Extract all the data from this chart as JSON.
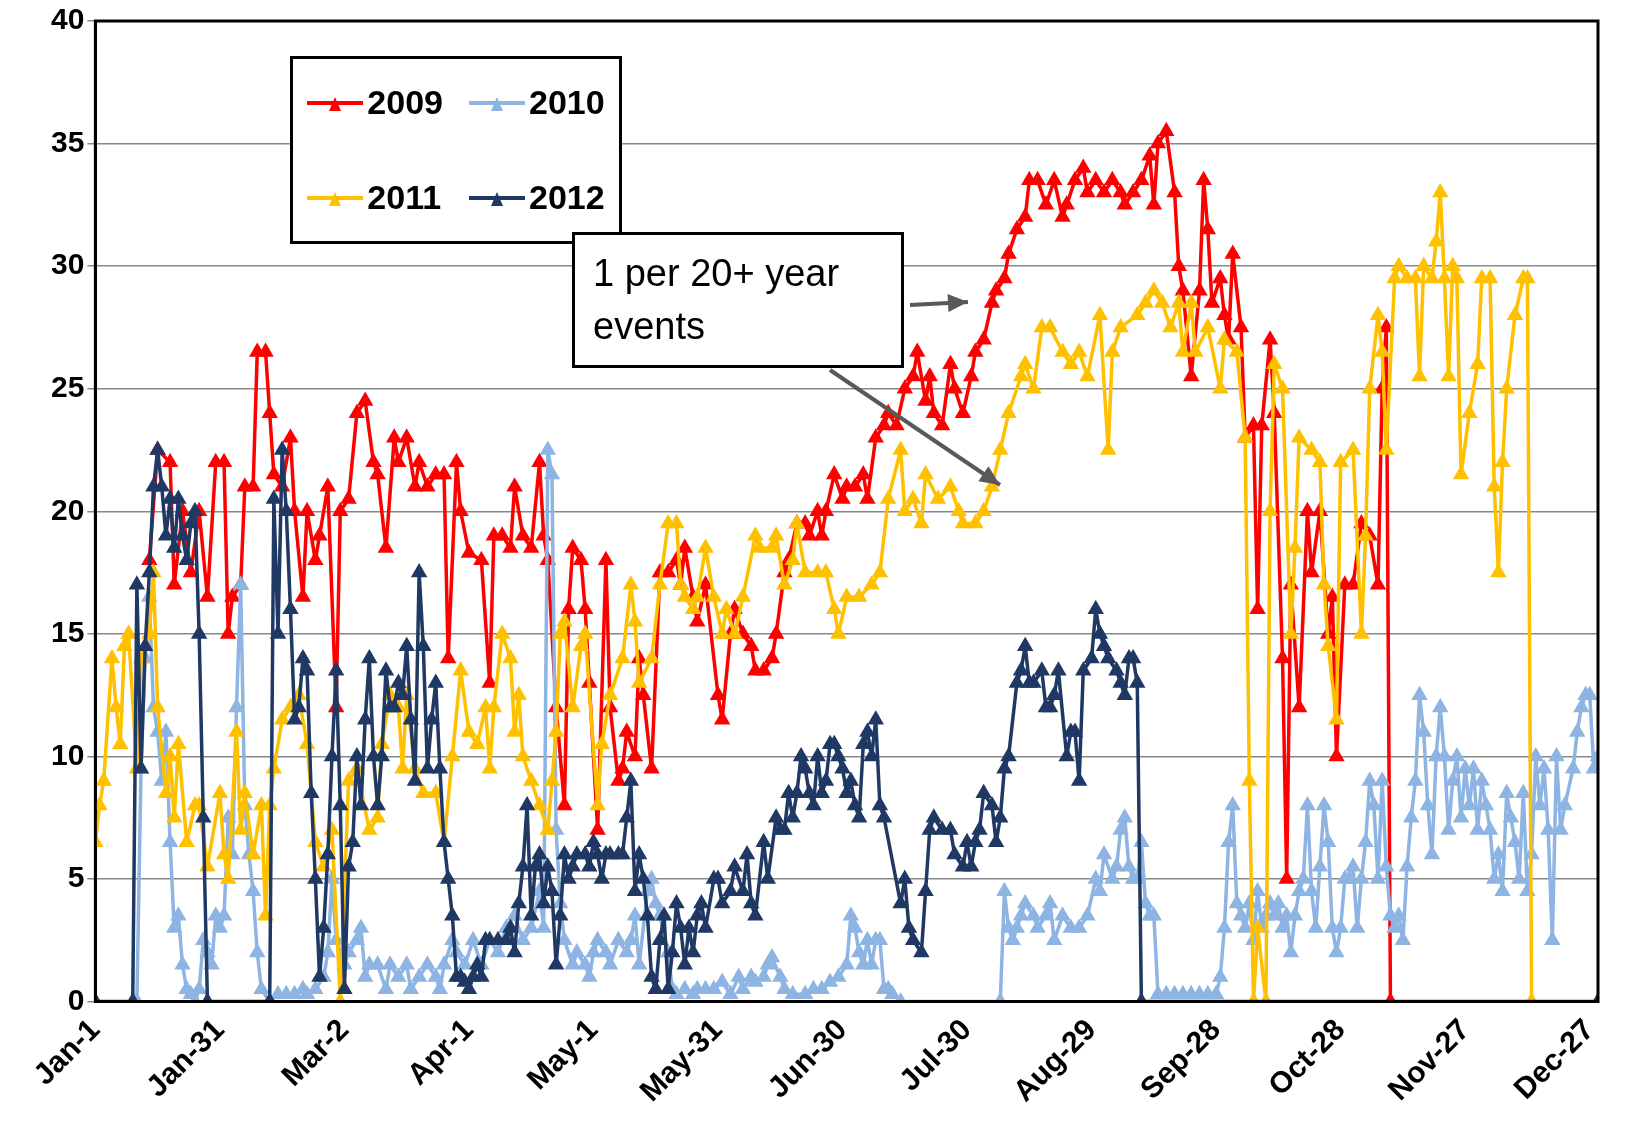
{
  "chart_data": {
    "type": "line",
    "marker": "triangle",
    "line_style": "solid",
    "grid": "y",
    "legend": "top left",
    "xlim": [
      "--01-01",
      "--12-29"
    ],
    "xticks": [
      {
        "value": "--01-01",
        "label": "Jan-1"
      },
      {
        "value": "--01-31",
        "label": "Jan-31"
      },
      {
        "value": "--03-02",
        "label": "Mar-2"
      },
      {
        "value": "--04-01",
        "label": "Apr-1"
      },
      {
        "value": "--05-01",
        "label": "May-1"
      },
      {
        "value": "--05-31",
        "label": "May-31"
      },
      {
        "value": "--06-30",
        "label": "Jun-30"
      },
      {
        "value": "--07-30",
        "label": "Jul-30"
      },
      {
        "value": "--08-29",
        "label": "Aug-29"
      },
      {
        "value": "--09-28",
        "label": "Sep-28"
      },
      {
        "value": "--10-28",
        "label": "Oct-28"
      },
      {
        "value": "--11-27",
        "label": "Nov-27"
      },
      {
        "value": "--12-27",
        "label": "Dec-27"
      }
    ],
    "ylim": [
      0,
      40
    ],
    "yticks": [
      0,
      5,
      10,
      15,
      20,
      25,
      30,
      35,
      40
    ],
    "annotations": [
      "1 per 20+ year events"
    ],
    "series": [
      {
        "name": "2009",
        "color": "#ff0000",
        "x": [
          "--01-14",
          "--01-16",
          "--01-19",
          "--01-20",
          "--01-22",
          "--01-24",
          "--01-26",
          "--01-28",
          "--01-30",
          "--02-01",
          "--02-02",
          "--02-03",
          "--02-05",
          "--02-06",
          "--02-08",
          "--02-09",
          "--02-11",
          "--02-12",
          "--02-13",
          "--02-15",
          "--02-17",
          "--02-18",
          "--02-20",
          "--02-21",
          "--02-23",
          "--02-24",
          "--02-26",
          "--02-28",
          "--03-01",
          "--03-03",
          "--03-05",
          "--03-07",
          "--03-09",
          "--03-10",
          "--03-12",
          "--03-14",
          "--03-15",
          "--03-17",
          "--03-19",
          "--03-20",
          "--03-22",
          "--03-24",
          "--03-26",
          "--03-27",
          "--03-29",
          "--03-30",
          "--04-01",
          "--04-04",
          "--04-06",
          "--04-07",
          "--04-09",
          "--04-11",
          "--04-12",
          "--04-14",
          "--04-16",
          "--04-18",
          "--04-19",
          "--04-20",
          "--04-22",
          "--04-24",
          "--04-25",
          "--04-26",
          "--04-28",
          "--04-29",
          "--04-30",
          "--05-02",
          "--05-04",
          "--05-05",
          "--05-07",
          "--05-08",
          "--05-09",
          "--05-11",
          "--05-12",
          "--05-13",
          "--05-15",
          "--05-17",
          "--05-19",
          "--05-21",
          "--05-22",
          "--05-23",
          "--05-25",
          "--05-26",
          "--05-28",
          "--05-31",
          "--06-01",
          "--06-03",
          "--06-04",
          "--06-06",
          "--06-08",
          "--06-09",
          "--06-11",
          "--06-13",
          "--06-14",
          "--06-16",
          "--06-17",
          "--06-19",
          "--06-21",
          "--06-22",
          "--06-24",
          "--06-25",
          "--06-26",
          "--06-28",
          "--06-30",
          "--07-01",
          "--07-03",
          "--07-05",
          "--07-06",
          "--07-08",
          "--07-10",
          "--07-11",
          "--07-13",
          "--07-15",
          "--07-17",
          "--07-18",
          "--07-20",
          "--07-21",
          "--07-22",
          "--07-24",
          "--07-26",
          "--07-27",
          "--07-29",
          "--07-31",
          "--08-01",
          "--08-03",
          "--08-05",
          "--08-06",
          "--08-08",
          "--08-09",
          "--08-11",
          "--08-13",
          "--08-14",
          "--08-16",
          "--08-18",
          "--08-20",
          "--08-22",
          "--08-23",
          "--08-25",
          "--08-27",
          "--08-28",
          "--08-30",
          "--09-01",
          "--09-03",
          "--09-05",
          "--09-06",
          "--09-08",
          "--09-10",
          "--09-12",
          "--09-13",
          "--09-14",
          "--09-16",
          "--09-18",
          "--09-19",
          "--09-20",
          "--09-22",
          "--09-24",
          "--09-25",
          "--09-26",
          "--09-27",
          "--09-29",
          "--09-30",
          "--10-01",
          "--10-02",
          "--10-04",
          "--10-05",
          "--10-07",
          "--10-08",
          "--10-09",
          "--10-11",
          "--10-12",
          "--10-14",
          "--10-15",
          "--10-16",
          "--10-18",
          "--10-20",
          "--10-21",
          "--10-23",
          "--10-25",
          "--10-26",
          "--10-27",
          "--10-29",
          "--10-31",
          "--11-02",
          "--11-04",
          "--11-06",
          "--11-07",
          "--11-08",
          "--11-09"
        ],
        "values": [
          18,
          22.5,
          22,
          17,
          20,
          17.5,
          20,
          16.5,
          22,
          22,
          15,
          16.5,
          17,
          21,
          21,
          26.5,
          26.5,
          24,
          21.5,
          21,
          23,
          20,
          16.5,
          20,
          18,
          19,
          21,
          12,
          20,
          20.5,
          24,
          24.5,
          22,
          21.5,
          18.5,
          23,
          22,
          23,
          21,
          22,
          21,
          21.5,
          21.5,
          14,
          22,
          20,
          18.3,
          18,
          13,
          19,
          19,
          18.5,
          21,
          19,
          18.5,
          22,
          19,
          18,
          12,
          8,
          16,
          18.5,
          18,
          16,
          13,
          7,
          18,
          12,
          9,
          9.5,
          11,
          10,
          14,
          12.5,
          9.5,
          17.5,
          17.5,
          18,
          17,
          18.5,
          16.5,
          15.5,
          17,
          12.5,
          11.5,
          15,
          16,
          15,
          14.5,
          13.5,
          13.5,
          14,
          15,
          17.5,
          18,
          19.5,
          19.5,
          19,
          20,
          19,
          20,
          21.5,
          20.5,
          21,
          21,
          21.5,
          20.5,
          23,
          23.5,
          24,
          23.5,
          25,
          25.5,
          26.5,
          24.5,
          25.5,
          24,
          23.5,
          26,
          25,
          24,
          25.5,
          26.5,
          27,
          28.5,
          29,
          29.5,
          30.5,
          31.5,
          32,
          33.5,
          33.5,
          32.5,
          33.5,
          32,
          32.5,
          33.5,
          34,
          33,
          33.5,
          33,
          33.5,
          33,
          32.5,
          33,
          33.5,
          34.5,
          32.5,
          35,
          35.5,
          33,
          30,
          29,
          25.5,
          29,
          33.5,
          31.5,
          28.5,
          29.5,
          28,
          27,
          30.5,
          27.5,
          23,
          23.5,
          16,
          23.5,
          27,
          24,
          14,
          5,
          17,
          12,
          20,
          17.5,
          20,
          15,
          16.5,
          10,
          17,
          17,
          19.5,
          19,
          17,
          25,
          27.5,
          0
        ]
      },
      {
        "name": "2010",
        "color": "#8db4e2",
        "x": [
          "--01-11",
          "--01-12",
          "--01-13",
          "--01-14",
          "--01-15",
          "--01-16",
          "--01-17",
          "--01-18",
          "--01-19",
          "--01-20",
          "--01-21",
          "--01-22",
          "--01-23",
          "--01-24",
          "--01-25",
          "--01-26",
          "--01-27",
          "--01-28",
          "--01-29",
          "--01-30",
          "--01-31",
          "--02-01",
          "--02-02",
          "--02-03",
          "--02-04",
          "--02-05",
          "--02-06",
          "--02-07",
          "--02-08",
          "--02-09",
          "--02-10",
          "--02-12",
          "--02-14",
          "--02-16",
          "--02-18",
          "--02-20",
          "--02-21",
          "--02-23",
          "--02-25",
          "--02-26",
          "--02-27",
          "--02-28",
          "--03-02",
          "--03-03",
          "--03-05",
          "--03-06",
          "--03-07",
          "--03-08",
          "--03-10",
          "--03-12",
          "--03-13",
          "--03-15",
          "--03-17",
          "--03-18",
          "--03-20",
          "--03-22",
          "--03-24",
          "--03-25",
          "--03-26",
          "--03-28",
          "--03-29",
          "--03-31",
          "--04-02",
          "--04-04",
          "--04-06",
          "--04-08",
          "--04-10",
          "--04-12",
          "--04-14",
          "--04-16",
          "--04-18",
          "--04-19",
          "--04-20",
          "--04-21",
          "--04-22",
          "--04-23",
          "--04-24",
          "--04-26",
          "--04-27",
          "--04-29",
          "--04-30",
          "--05-01",
          "--05-02",
          "--05-04",
          "--05-05",
          "--05-07",
          "--05-09",
          "--05-10",
          "--05-11",
          "--05-12",
          "--05-14",
          "--05-15",
          "--05-16",
          "--05-17",
          "--05-19",
          "--05-20",
          "--05-21",
          "--05-23",
          "--05-25",
          "--05-26",
          "--05-28",
          "--05-30",
          "--06-01",
          "--06-03",
          "--06-05",
          "--06-06",
          "--06-08",
          "--06-09",
          "--06-11",
          "--06-12",
          "--06-13",
          "--06-15",
          "--06-16",
          "--06-18",
          "--06-21",
          "--06-23",
          "--06-25",
          "--06-27",
          "--06-29",
          "--07-01",
          "--07-02",
          "--07-03",
          "--07-04",
          "--07-05",
          "--07-06",
          "--07-07",
          "--07-08",
          "--07-09",
          "--07-10",
          "--07-11",
          "--07-12",
          "--07-14",
          "--08-07",
          "--08-08",
          "--08-09",
          "--08-10",
          "--08-11",
          "--08-12",
          "--08-13",
          "--08-15",
          "--08-16",
          "--08-18",
          "--08-19",
          "--08-20",
          "--08-22",
          "--08-24",
          "--08-26",
          "--08-28",
          "--08-30",
          "--08-31",
          "--09-01",
          "--09-03",
          "--09-04",
          "--09-05",
          "--09-06",
          "--09-07",
          "--09-08",
          "--09-09",
          "--09-10",
          "--09-11",
          "--09-12",
          "--09-13",
          "--09-14",
          "--09-16",
          "--09-18",
          "--09-20",
          "--09-22",
          "--09-24",
          "--09-26",
          "--09-28",
          "--09-29",
          "--09-30",
          "--10-01",
          "--10-02",
          "--10-03",
          "--10-04",
          "--10-05",
          "--10-06",
          "--10-07",
          "--10-08",
          "--10-09",
          "--10-10",
          "--10-11",
          "--10-12",
          "--10-13",
          "--10-14",
          "--10-15",
          "--10-16",
          "--10-17",
          "--10-18",
          "--10-19",
          "--10-20",
          "--10-21",
          "--10-22",
          "--10-23",
          "--10-24",
          "--10-25",
          "--10-26",
          "--10-27",
          "--10-28",
          "--10-29",
          "--10-30",
          "--10-31",
          "--11-01",
          "--11-02",
          "--11-03",
          "--11-04",
          "--11-05",
          "--11-06",
          "--11-07",
          "--11-08",
          "--11-09",
          "--11-10",
          "--11-11",
          "--11-12",
          "--11-13",
          "--11-14",
          "--11-15",
          "--11-16",
          "--11-17",
          "--11-18",
          "--11-19",
          "--11-20",
          "--11-21",
          "--11-22",
          "--11-23",
          "--11-24",
          "--11-25",
          "--11-26",
          "--11-27",
          "--11-28",
          "--11-29",
          "--11-30",
          "--12-01",
          "--12-02",
          "--12-03",
          "--12-04",
          "--12-05",
          "--12-06",
          "--12-07",
          "--12-08",
          "--12-09",
          "--12-10",
          "--12-11",
          "--12-12",
          "--12-13",
          "--12-14",
          "--12-15",
          "--12-16",
          "--12-17",
          "--12-18",
          "--12-19",
          "--12-20",
          "--12-21",
          "--12-23",
          "--12-24",
          "--12-25",
          "--12-26",
          "--12-27",
          "--12-28",
          "--12-29"
        ],
        "values": [
          0,
          9.5,
          14,
          16.5,
          12,
          11,
          9,
          11,
          6.5,
          3,
          3.5,
          1.5,
          0.5,
          0.3,
          0,
          0.5,
          2.5,
          2,
          1.5,
          3.5,
          3,
          3.5,
          7.5,
          6,
          12,
          17,
          8,
          6,
          4.5,
          2,
          0.5,
          0,
          0.3,
          0.3,
          0.3,
          0.5,
          0.3,
          0.5,
          1,
          2,
          5,
          2.5,
          1.5,
          2,
          2.5,
          3,
          1,
          1.5,
          1.5,
          0.5,
          1.5,
          1,
          1.5,
          0.5,
          1,
          1.5,
          1,
          0.5,
          1.5,
          2.5,
          2,
          1.5,
          2.5,
          1.5,
          2.5,
          2,
          3,
          3.5,
          2.5,
          3,
          4.5,
          3,
          22.5,
          21.5,
          7,
          4,
          2.5,
          1.5,
          2,
          1.5,
          1,
          2,
          2.5,
          2,
          1.5,
          2.5,
          2,
          2.5,
          3.5,
          1.5,
          4.5,
          5,
          4,
          3.5,
          2,
          0.5,
          0.3,
          0.5,
          0.3,
          0.5,
          0.5,
          0.5,
          0.8,
          0.3,
          1,
          0.5,
          1,
          0.8,
          1,
          1.5,
          1.8,
          1,
          0.5,
          0.3,
          0.3,
          0.5,
          0.5,
          0.8,
          1,
          1.5,
          3.5,
          3,
          2,
          1.5,
          2.5,
          1.5,
          2.5,
          2.5,
          0.5,
          0.5,
          0.3,
          0,
          0,
          4.5,
          3,
          2.5,
          3,
          3.5,
          4,
          3.5,
          3,
          3.5,
          4,
          2.5,
          3.5,
          3,
          3,
          3.5,
          5,
          4.5,
          6,
          5,
          5.5,
          7,
          7.5,
          5.5,
          5,
          5,
          6.5,
          4,
          3.5,
          3.5,
          0.3,
          0.3,
          0.3,
          0.3,
          0.3,
          0.3,
          0.3,
          0.3,
          1,
          3,
          6.5,
          8,
          4,
          3.5,
          3,
          4,
          2.5,
          4.5,
          3,
          3.5,
          4,
          3.5,
          4,
          3,
          3.5,
          2,
          3.5,
          4.5,
          5,
          8,
          4.5,
          3,
          5.5,
          8,
          6.5,
          3,
          2,
          3,
          5,
          5,
          5.5,
          3,
          5,
          6.5,
          9,
          8,
          5,
          9,
          5.5,
          3.5,
          3,
          3.5,
          2.5,
          5.5,
          7.5,
          9,
          12.5,
          11,
          8,
          6,
          10,
          12,
          10,
          7,
          9,
          10,
          7.5,
          9.5,
          8,
          9.5,
          7,
          9,
          8,
          7,
          5,
          6,
          4.5,
          8.5,
          7.5,
          6.5,
          5,
          8.5,
          4.5,
          6,
          10,
          8,
          9.5,
          7,
          2.5,
          10,
          7,
          8,
          9.5,
          11,
          12,
          12.5,
          12.5,
          9.5,
          10
        ]
      },
      {
        "name": "2011",
        "color": "#ffc000",
        "x": [
          "--01-01",
          "--01-02",
          "--01-03",
          "--01-05",
          "--01-06",
          "--01-07",
          "--01-08",
          "--01-09",
          "--01-11",
          "--01-12",
          "--01-14",
          "--01-15",
          "--01-16",
          "--01-18",
          "--01-19",
          "--01-20",
          "--01-21",
          "--01-23",
          "--01-25",
          "--01-26",
          "--01-28",
          "--01-31",
          "--02-01",
          "--02-02",
          "--02-04",
          "--02-05",
          "--02-06",
          "--02-08",
          "--02-10",
          "--02-11",
          "--02-12",
          "--02-13",
          "--02-15",
          "--02-17",
          "--02-19",
          "--02-21",
          "--02-23",
          "--02-25",
          "--02-27",
          "--03-01",
          "--03-03",
          "--03-05",
          "--03-08",
          "--03-10",
          "--03-11",
          "--03-13",
          "--03-15",
          "--03-16",
          "--03-17",
          "--03-19",
          "--03-21",
          "--03-24",
          "--03-26",
          "--03-28",
          "--03-30",
          "--04-01",
          "--04-03",
          "--04-05",
          "--04-06",
          "--04-07",
          "--04-09",
          "--04-11",
          "--04-12",
          "--04-13",
          "--04-14",
          "--04-16",
          "--04-18",
          "--04-20",
          "--04-21",
          "--04-22",
          "--04-23",
          "--04-24",
          "--04-26",
          "--04-28",
          "--04-29",
          "--05-02",
          "--05-03",
          "--05-05",
          "--05-08",
          "--05-10",
          "--05-11",
          "--05-12",
          "--05-15",
          "--05-17",
          "--05-19",
          "--05-21",
          "--05-22",
          "--05-23",
          "--05-25",
          "--05-26",
          "--05-28",
          "--05-30",
          "--06-01",
          "--06-02",
          "--06-04",
          "--06-06",
          "--06-09",
          "--06-10",
          "--06-13",
          "--06-14",
          "--06-16",
          "--06-18",
          "--06-19",
          "--06-21",
          "--06-24",
          "--06-26",
          "--06-28",
          "--06-29",
          "--07-01",
          "--07-04",
          "--07-07",
          "--07-09",
          "--07-11",
          "--07-14",
          "--07-15",
          "--07-17",
          "--07-19",
          "--07-20",
          "--07-23",
          "--07-26",
          "--07-28",
          "--07-29",
          "--08-01",
          "--08-03",
          "--08-05",
          "--08-07",
          "--08-09",
          "--08-12",
          "--08-13",
          "--08-15",
          "--08-17",
          "--08-19",
          "--08-22",
          "--08-24",
          "--08-26",
          "--08-28",
          "--08-31",
          "--09-02",
          "--09-03",
          "--09-05",
          "--09-09",
          "--09-11",
          "--09-13",
          "--09-15",
          "--09-17",
          "--09-19",
          "--09-20",
          "--09-22",
          "--09-23",
          "--09-26",
          "--09-29",
          "--09-30",
          "--10-03",
          "--10-05",
          "--10-06",
          "--10-07",
          "--10-08",
          "--10-10",
          "--10-11",
          "--10-12",
          "--10-14",
          "--10-16",
          "--10-17",
          "--10-18",
          "--10-21",
          "--10-23",
          "--10-24",
          "--10-25",
          "--10-27",
          "--10-28",
          "--10-31",
          "--11-02",
          "--11-03",
          "--11-04",
          "--11-06",
          "--11-07",
          "--11-08",
          "--11-10",
          "--11-11",
          "--11-13",
          "--11-15",
          "--11-16",
          "--11-17",
          "--11-19",
          "--11-20",
          "--11-21",
          "--11-22",
          "--11-23",
          "--11-24",
          "--11-25",
          "--11-26",
          "--11-28",
          "--11-30",
          "--12-01",
          "--12-03",
          "--12-04",
          "--12-05",
          "--12-06",
          "--12-07",
          "--12-09",
          "--12-11",
          "--12-12",
          "--12-13"
        ],
        "values": [
          6.5,
          8,
          9,
          14,
          12,
          10.5,
          14.5,
          15,
          9.5,
          14,
          15,
          17.5,
          12,
          8.5,
          10,
          7.5,
          10.5,
          6.5,
          8,
          8,
          5.5,
          8.5,
          6,
          5,
          11,
          7,
          8.5,
          6,
          8,
          3.5,
          8,
          9.5,
          11.5,
          12,
          12.5,
          10.5,
          6.5,
          5.5,
          7,
          0,
          9,
          9.5,
          7,
          7.5,
          10.5,
          12.5,
          12,
          9.5,
          12.5,
          9.5,
          8.5,
          8.5,
          6.5,
          10,
          13.5,
          11,
          10.5,
          12,
          9.5,
          12,
          15,
          14,
          11,
          12.5,
          10,
          9,
          8,
          7,
          9,
          11,
          15,
          15.5,
          12,
          14.5,
          15,
          8,
          10.5,
          12.5,
          14,
          17,
          15.5,
          13,
          14,
          17,
          19.5,
          19.5,
          17,
          16.5,
          16,
          16.5,
          18.5,
          16.5,
          15,
          16,
          15,
          16.5,
          19,
          18.5,
          18.5,
          19,
          17,
          18,
          19.5,
          17.5,
          17.5,
          17.5,
          16,
          15,
          16.5,
          16.5,
          17,
          17.5,
          20.5,
          22.5,
          20,
          20.5,
          19.5,
          21.5,
          20.5,
          21,
          20,
          19.5,
          19.5,
          20,
          21,
          22.5,
          24,
          25.5,
          26,
          25,
          27.5,
          27.5,
          26.5,
          26,
          26.5,
          25.5,
          28,
          22.5,
          26.5,
          27.5,
          28,
          28.5,
          29,
          28.5,
          27.5,
          28.5,
          26.5,
          28.5,
          26.5,
          27.5,
          25,
          27,
          26.5,
          23,
          9,
          0,
          3,
          0,
          20,
          26,
          25,
          15,
          18.5,
          23,
          22.5,
          22,
          17,
          14.5,
          11.5,
          22,
          22.5,
          15,
          19,
          25,
          28,
          26.5,
          22.5,
          29.5,
          30,
          29.5,
          29.5,
          25.5,
          30,
          29.5,
          31,
          33,
          29.5,
          25.5,
          30,
          29.5,
          21.5,
          24,
          26,
          29.5,
          29.5,
          21,
          17.5,
          22,
          25,
          28,
          29.5,
          29.5,
          0
        ]
      },
      {
        "name": "2012",
        "color": "#1f3864",
        "x": [
          "--01-01",
          "--01-10",
          "--01-11",
          "--01-12",
          "--01-13",
          "--01-14",
          "--01-15",
          "--01-16",
          "--01-17",
          "--01-18",
          "--01-19",
          "--01-20",
          "--01-21",
          "--01-22",
          "--01-23",
          "--01-24",
          "--01-25",
          "--01-26",
          "--01-27",
          "--01-28",
          "--02-12",
          "--02-13",
          "--02-14",
          "--02-15",
          "--02-16",
          "--02-17",
          "--02-18",
          "--02-19",
          "--02-20",
          "--02-21",
          "--02-22",
          "--02-23",
          "--02-24",
          "--02-25",
          "--02-26",
          "--02-27",
          "--02-28",
          "--03-01",
          "--03-02",
          "--03-03",
          "--03-04",
          "--03-05",
          "--03-06",
          "--03-07",
          "--03-08",
          "--03-09",
          "--03-10",
          "--03-11",
          "--03-12",
          "--03-13",
          "--03-14",
          "--03-15",
          "--03-16",
          "--03-17",
          "--03-18",
          "--03-19",
          "--03-20",
          "--03-21",
          "--03-22",
          "--03-23",
          "--03-24",
          "--03-25",
          "--03-26",
          "--03-27",
          "--03-28",
          "--03-29",
          "--03-30",
          "--03-31",
          "--04-01",
          "--04-02",
          "--04-03",
          "--04-04",
          "--04-05",
          "--04-06",
          "--04-08",
          "--04-10",
          "--04-11",
          "--04-12",
          "--04-13",
          "--04-14",
          "--04-15",
          "--04-16",
          "--04-17",
          "--04-18",
          "--04-19",
          "--04-20",
          "--04-21",
          "--04-22",
          "--04-23",
          "--04-24",
          "--04-25",
          "--04-26",
          "--04-27",
          "--04-29",
          "--04-30",
          "--05-01",
          "--05-02",
          "--05-03",
          "--05-04",
          "--05-05",
          "--05-07",
          "--05-08",
          "--05-09",
          "--05-10",
          "--05-11",
          "--05-12",
          "--05-13",
          "--05-14",
          "--05-15",
          "--05-16",
          "--05-17",
          "--05-18",
          "--05-19",
          "--05-20",
          "--05-21",
          "--05-22",
          "--05-23",
          "--05-24",
          "--05-25",
          "--05-26",
          "--05-27",
          "--05-28",
          "--05-30",
          "--05-31",
          "--06-01",
          "--06-03",
          "--06-04",
          "--06-06",
          "--06-07",
          "--06-08",
          "--06-09",
          "--06-11",
          "--06-12",
          "--06-14",
          "--06-15",
          "--06-16",
          "--06-17",
          "--06-18",
          "--06-19",
          "--06-20",
          "--06-21",
          "--06-22",
          "--06-23",
          "--06-24",
          "--06-25",
          "--06-26",
          "--06-27",
          "--06-28",
          "--06-29",
          "--06-30",
          "--07-01",
          "--07-02",
          "--07-03",
          "--07-04",
          "--07-05",
          "--07-06",
          "--07-07",
          "--07-08",
          "--07-09",
          "--07-10",
          "--07-14",
          "--07-15",
          "--07-16",
          "--07-17",
          "--07-19",
          "--07-20",
          "--07-21",
          "--07-22",
          "--07-24",
          "--07-26",
          "--07-27",
          "--07-29",
          "--07-30",
          "--07-31",
          "--08-01",
          "--08-02",
          "--08-03",
          "--08-05",
          "--08-06",
          "--08-07",
          "--08-08",
          "--08-09",
          "--08-11",
          "--08-12",
          "--08-13",
          "--08-14",
          "--08-15",
          "--08-17",
          "--08-18",
          "--08-19",
          "--08-20",
          "--08-21",
          "--08-23",
          "--08-24",
          "--08-25",
          "--08-26",
          "--08-27",
          "--08-29",
          "--08-30",
          "--08-31",
          "--09-01",
          "--09-02",
          "--09-04",
          "--09-05",
          "--09-06",
          "--09-07",
          "--09-08",
          "--09-09",
          "--09-10",
          "--12-29"
        ],
        "values": [
          0,
          0,
          17,
          9.5,
          14.5,
          17.5,
          21,
          22.5,
          21,
          19,
          20.5,
          18.5,
          20.5,
          19,
          18,
          19.5,
          20,
          15,
          7.5,
          0,
          0,
          20.5,
          15,
          22.5,
          20,
          16,
          11.5,
          12,
          14,
          13.5,
          8.5,
          5,
          1,
          3,
          6,
          10,
          13.5,
          8,
          0.5,
          5.5,
          6.5,
          10,
          8,
          11.5,
          14,
          10,
          8,
          10,
          13.5,
          12,
          12,
          13,
          12.5,
          14.5,
          11.5,
          9,
          17.5,
          14.5,
          9.5,
          11.5,
          13,
          9.5,
          6.5,
          5,
          3.5,
          1,
          1,
          0.8,
          0.5,
          1,
          1.5,
          1,
          2.5,
          2.5,
          2.5,
          2.5,
          3,
          2,
          4,
          5.5,
          8,
          3.5,
          5.5,
          6,
          4,
          5.5,
          4.5,
          1.5,
          3.5,
          6,
          5,
          5.5,
          6,
          6,
          5.5,
          6.5,
          6,
          5,
          6,
          6,
          6,
          6,
          7.5,
          9,
          4.5,
          6,
          5,
          3.5,
          1,
          0.5,
          2.5,
          3.5,
          0.5,
          2,
          4,
          3,
          1.5,
          3,
          2,
          3.5,
          4,
          3,
          5,
          5,
          4,
          4.5,
          5.5,
          4.5,
          6,
          4,
          3.5,
          6.5,
          5,
          7.5,
          7,
          7,
          8.5,
          7.5,
          8.5,
          10,
          9.5,
          8.5,
          8,
          10,
          8.5,
          9,
          10.5,
          10.5,
          10,
          9.5,
          8.5,
          9,
          8,
          7.5,
          10.5,
          11,
          10,
          11.5,
          8,
          7.5,
          4,
          5,
          3,
          2.5,
          2,
          4.5,
          7,
          7.5,
          7,
          7,
          6,
          5.5,
          6.5,
          5.5,
          6.5,
          7,
          8.5,
          8,
          6.5,
          7.5,
          9.5,
          10,
          13,
          13.5,
          14.5,
          13,
          13,
          13.5,
          12,
          12,
          12.5,
          13.5,
          10,
          11,
          11,
          9,
          13.5,
          14,
          16,
          15,
          14.5,
          14,
          13.5,
          13,
          12.5,
          14,
          14,
          13,
          0,
          0
        ]
      }
    ]
  }
}
